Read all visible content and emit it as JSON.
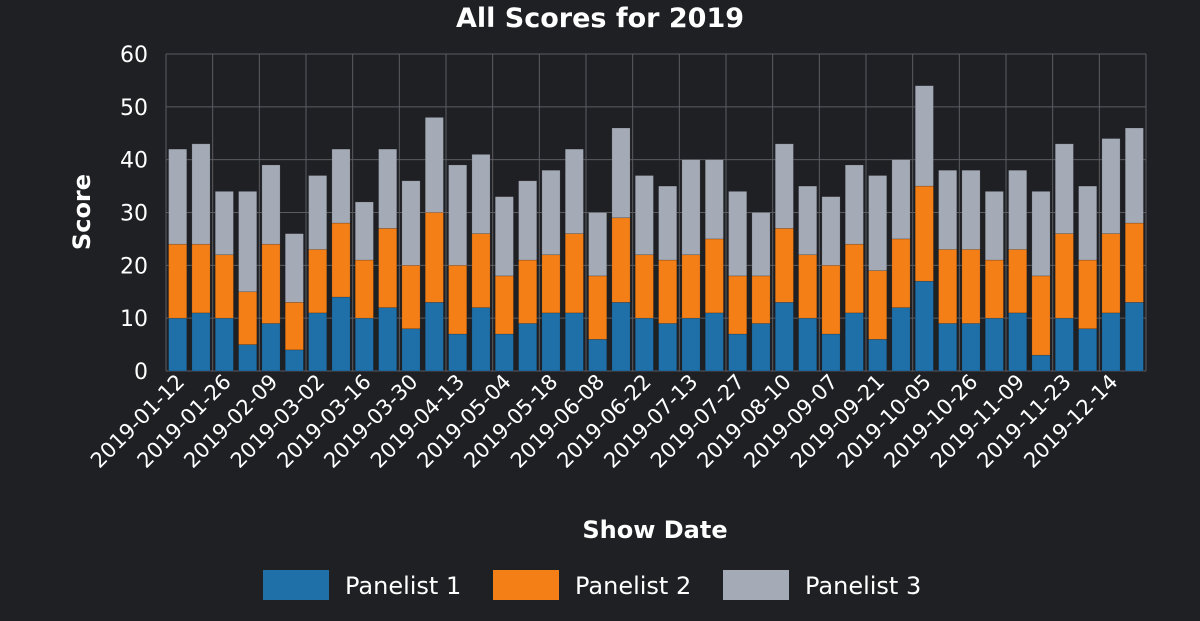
{
  "chart_data": {
    "type": "bar",
    "stacked": true,
    "title": "All Scores for 2019",
    "xlabel": "Show Date",
    "ylabel": "Score",
    "ylim": [
      0,
      60
    ],
    "yticks": [
      0,
      10,
      20,
      30,
      40,
      50,
      60
    ],
    "grid": true,
    "legend_position": "bottom",
    "x_tick_labels": [
      "2019-01-12",
      "2019-01-26",
      "2019-02-09",
      "2019-03-02",
      "2019-03-16",
      "2019-03-30",
      "2019-04-13",
      "2019-05-04",
      "2019-05-18",
      "2019-06-08",
      "2019-06-22",
      "2019-07-13",
      "2019-07-27",
      "2019-08-10",
      "2019-09-07",
      "2019-09-21",
      "2019-10-05",
      "2019-10-26",
      "2019-11-09",
      "2019-11-23",
      "2019-12-14"
    ],
    "bar_count": 42,
    "series": [
      {
        "name": "Panelist 1",
        "color": "#1f6fa8",
        "values": [
          10,
          11,
          10,
          5,
          9,
          4,
          11,
          14,
          10,
          12,
          8,
          13,
          7,
          12,
          7,
          9,
          11,
          11,
          6,
          13,
          10,
          9,
          10,
          11,
          7,
          9,
          13,
          10,
          7,
          11,
          6,
          12,
          17,
          9,
          9,
          10,
          11,
          3,
          10,
          8,
          11,
          13
        ]
      },
      {
        "name": "Panelist 2",
        "color": "#f47f17",
        "values": [
          14,
          13,
          12,
          10,
          15,
          9,
          12,
          14,
          11,
          15,
          12,
          17,
          13,
          14,
          11,
          12,
          11,
          15,
          12,
          16,
          12,
          12,
          12,
          14,
          11,
          9,
          14,
          12,
          13,
          13,
          13,
          13,
          18,
          14,
          14,
          11,
          12,
          15,
          16,
          13,
          15,
          15
        ]
      },
      {
        "name": "Panelist 3",
        "color": "#a4aab6",
        "values": [
          18,
          19,
          12,
          19,
          15,
          13,
          14,
          14,
          11,
          15,
          16,
          18,
          19,
          15,
          15,
          15,
          16,
          16,
          12,
          17,
          15,
          14,
          18,
          15,
          16,
          12,
          16,
          13,
          13,
          15,
          18,
          15,
          19,
          15,
          15,
          13,
          15,
          16,
          17,
          14,
          18,
          18
        ]
      }
    ]
  }
}
